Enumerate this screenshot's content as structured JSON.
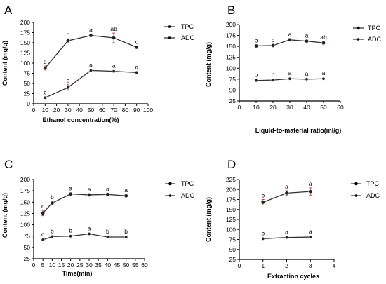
{
  "chart_data": [
    {
      "panel": "A",
      "type": "line",
      "xlabel": "Ethanol concentration(%)",
      "ylabel": "Content (mg/g)",
      "xlim": [
        0,
        100
      ],
      "ylim": [
        0,
        200
      ],
      "xticks": [
        0,
        10,
        20,
        30,
        40,
        50,
        60,
        70,
        80,
        90,
        100
      ],
      "yticks": [
        0,
        25,
        50,
        75,
        100,
        125,
        150,
        175,
        200
      ],
      "x": [
        10,
        30,
        50,
        70,
        90
      ],
      "series": [
        {
          "name": "TPC",
          "values": [
            88,
            155,
            168,
            162,
            139
          ],
          "errors": [
            5,
            5,
            3,
            12,
            2
          ],
          "labels": [
            "d",
            "b",
            "a",
            "ab",
            "c"
          ]
        },
        {
          "name": "ADC",
          "values": [
            15,
            40,
            82,
            80,
            77
          ],
          "errors": [
            2,
            7,
            3,
            2,
            2
          ],
          "labels": [
            "c",
            "b",
            "a",
            "a",
            "a"
          ]
        }
      ]
    },
    {
      "panel": "B",
      "type": "line",
      "xlabel": "Liquid-to-material ratio(ml/g)",
      "ylabel": "Content (mg/g)",
      "xlim": [
        0,
        60
      ],
      "ylim": [
        25,
        200
      ],
      "xticks": [
        0,
        10,
        20,
        30,
        40,
        50,
        60
      ],
      "yticks": [
        25,
        50,
        75,
        100,
        125,
        150,
        175,
        200
      ],
      "x": [
        10,
        20,
        30,
        40,
        50
      ],
      "series": [
        {
          "name": "TPC",
          "values": [
            151,
            152,
            165,
            162,
            158
          ],
          "errors": [
            3,
            2,
            3,
            2,
            3
          ],
          "labels": [
            "b",
            "b",
            "a",
            "a",
            "ab"
          ]
        },
        {
          "name": "ADC",
          "values": [
            72,
            73,
            76,
            75,
            76
          ],
          "errors": [
            1,
            1,
            1,
            1,
            1
          ],
          "labels": [
            "b",
            "b",
            "a",
            "a",
            "a"
          ]
        }
      ]
    },
    {
      "panel": "C",
      "type": "line",
      "xlabel": "Time(min)",
      "ylabel": "Content (mg/g)",
      "xlim": [
        0,
        60
      ],
      "ylim": [
        25,
        200
      ],
      "xticks": [
        0,
        5,
        10,
        15,
        20,
        25,
        30,
        35,
        40,
        45,
        50,
        55,
        60
      ],
      "yticks": [
        25,
        50,
        75,
        100,
        125,
        150,
        175,
        200
      ],
      "x": [
        5,
        10,
        20,
        30,
        40,
        50
      ],
      "series": [
        {
          "name": "TPC",
          "values": [
            126,
            148,
            168,
            166,
            167,
            164
          ],
          "errors": [
            6,
            4,
            2,
            2,
            3,
            2
          ],
          "labels": [
            "c",
            "b",
            "a",
            "a",
            "a",
            "a"
          ]
        },
        {
          "name": "ADC",
          "values": [
            67,
            74,
            75,
            80,
            73,
            73
          ],
          "errors": [
            1,
            1,
            1,
            1,
            1,
            1
          ],
          "labels": [
            "c",
            "b",
            "b",
            "a",
            "b",
            "b"
          ]
        }
      ]
    },
    {
      "panel": "D",
      "type": "line",
      "xlabel": "Extraction cycles",
      "ylabel": "Content (mg/g)",
      "xlim": [
        0,
        4
      ],
      "ylim": [
        25,
        225
      ],
      "xticks": [
        0,
        1,
        2,
        3,
        4
      ],
      "yticks": [
        25,
        50,
        75,
        100,
        125,
        150,
        175,
        200,
        225
      ],
      "x": [
        1,
        2,
        3
      ],
      "series": [
        {
          "name": "TPC",
          "values": [
            168,
            191,
            195
          ],
          "errors": [
            7,
            6,
            9
          ],
          "labels": [
            "b",
            "a",
            "a"
          ]
        },
        {
          "name": "ADC",
          "values": [
            77,
            80,
            81
          ],
          "errors": [
            1,
            1,
            1
          ],
          "labels": [
            "b",
            "a",
            "a"
          ]
        }
      ]
    }
  ],
  "legend": {
    "tpc": "TPC",
    "adc": "ADC"
  }
}
